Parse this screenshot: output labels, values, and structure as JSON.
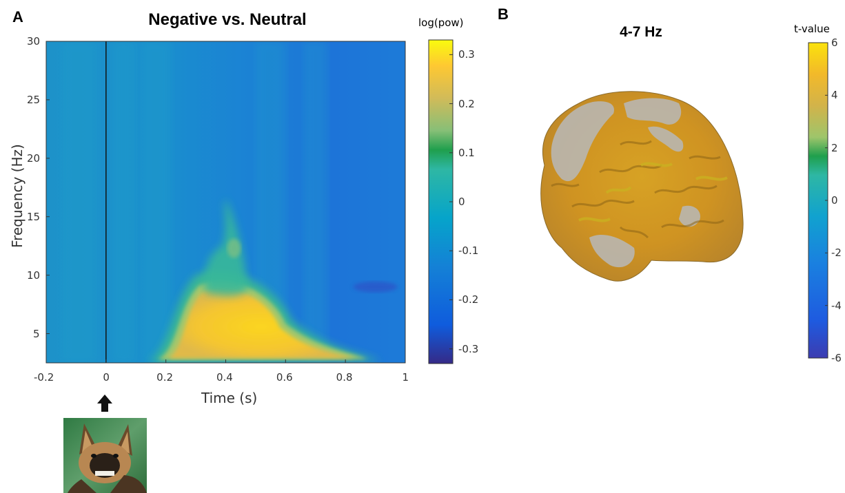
{
  "panels": {
    "a_letter": "A",
    "b_letter": "B"
  },
  "chart_data": [
    {
      "type": "heatmap",
      "title": "Negative vs. Neutral",
      "xlabel": "Time (s)",
      "ylabel": "Frequency (Hz)",
      "xlim": [
        -0.2,
        1
      ],
      "ylim": [
        2.5,
        30
      ],
      "x_ticks": [
        "-0.2",
        "0",
        "0.2",
        "0.4",
        "0.6",
        "0.8",
        "1"
      ],
      "x_tick_values": [
        -0.2,
        0,
        0.2,
        0.4,
        0.6,
        0.8,
        1
      ],
      "y_ticks": [
        "5",
        "10",
        "15",
        "20",
        "25",
        "30"
      ],
      "y_tick_values": [
        5,
        10,
        15,
        20,
        25,
        30
      ],
      "event_line_x": 0,
      "colorbar": {
        "label": "log(pow)",
        "range": [
          -0.33,
          0.33
        ],
        "ticks": [
          "0.3",
          "0.2",
          "0.1",
          "0",
          "-0.1",
          "-0.2",
          "-0.3"
        ],
        "tick_values": [
          0.3,
          0.2,
          0.1,
          0,
          -0.1,
          -0.2,
          -0.3
        ]
      },
      "features": [
        {
          "kind": "peak",
          "time_range": [
            0.15,
            0.85
          ],
          "freq_range": [
            3,
            8.5
          ],
          "value": 0.3
        },
        {
          "kind": "ridge",
          "time_range": [
            0.35,
            0.45
          ],
          "freq_range": [
            8.5,
            16.5
          ],
          "value": 0.1
        },
        {
          "kind": "trough",
          "time": 0.9,
          "freq": 9,
          "value": -0.2
        }
      ]
    },
    {
      "type": "brain_map",
      "title": "4-7 Hz",
      "colorbar": {
        "label": "t-value",
        "range": [
          -6,
          6
        ],
        "ticks": [
          "6",
          "4",
          "2",
          "0",
          "-2",
          "-4",
          "-6"
        ],
        "tick_values": [
          6,
          4,
          2,
          0,
          -2,
          -4,
          -6
        ]
      }
    }
  ],
  "colors": {
    "parula": [
      "#352a87",
      "#0f5cdd",
      "#1481d6",
      "#06a4ca",
      "#2eb7a4",
      "#87bf77",
      "#d1bb59",
      "#fec832",
      "#f9fb0e"
    ],
    "brain_gray": "#b9b4aa",
    "brain_orange": "#d9901e",
    "brain_gold": "#c9b021"
  },
  "icons": {
    "stimulus_arrow": "up-arrow-icon",
    "stimulus_image": "dog-stimulus-image"
  }
}
